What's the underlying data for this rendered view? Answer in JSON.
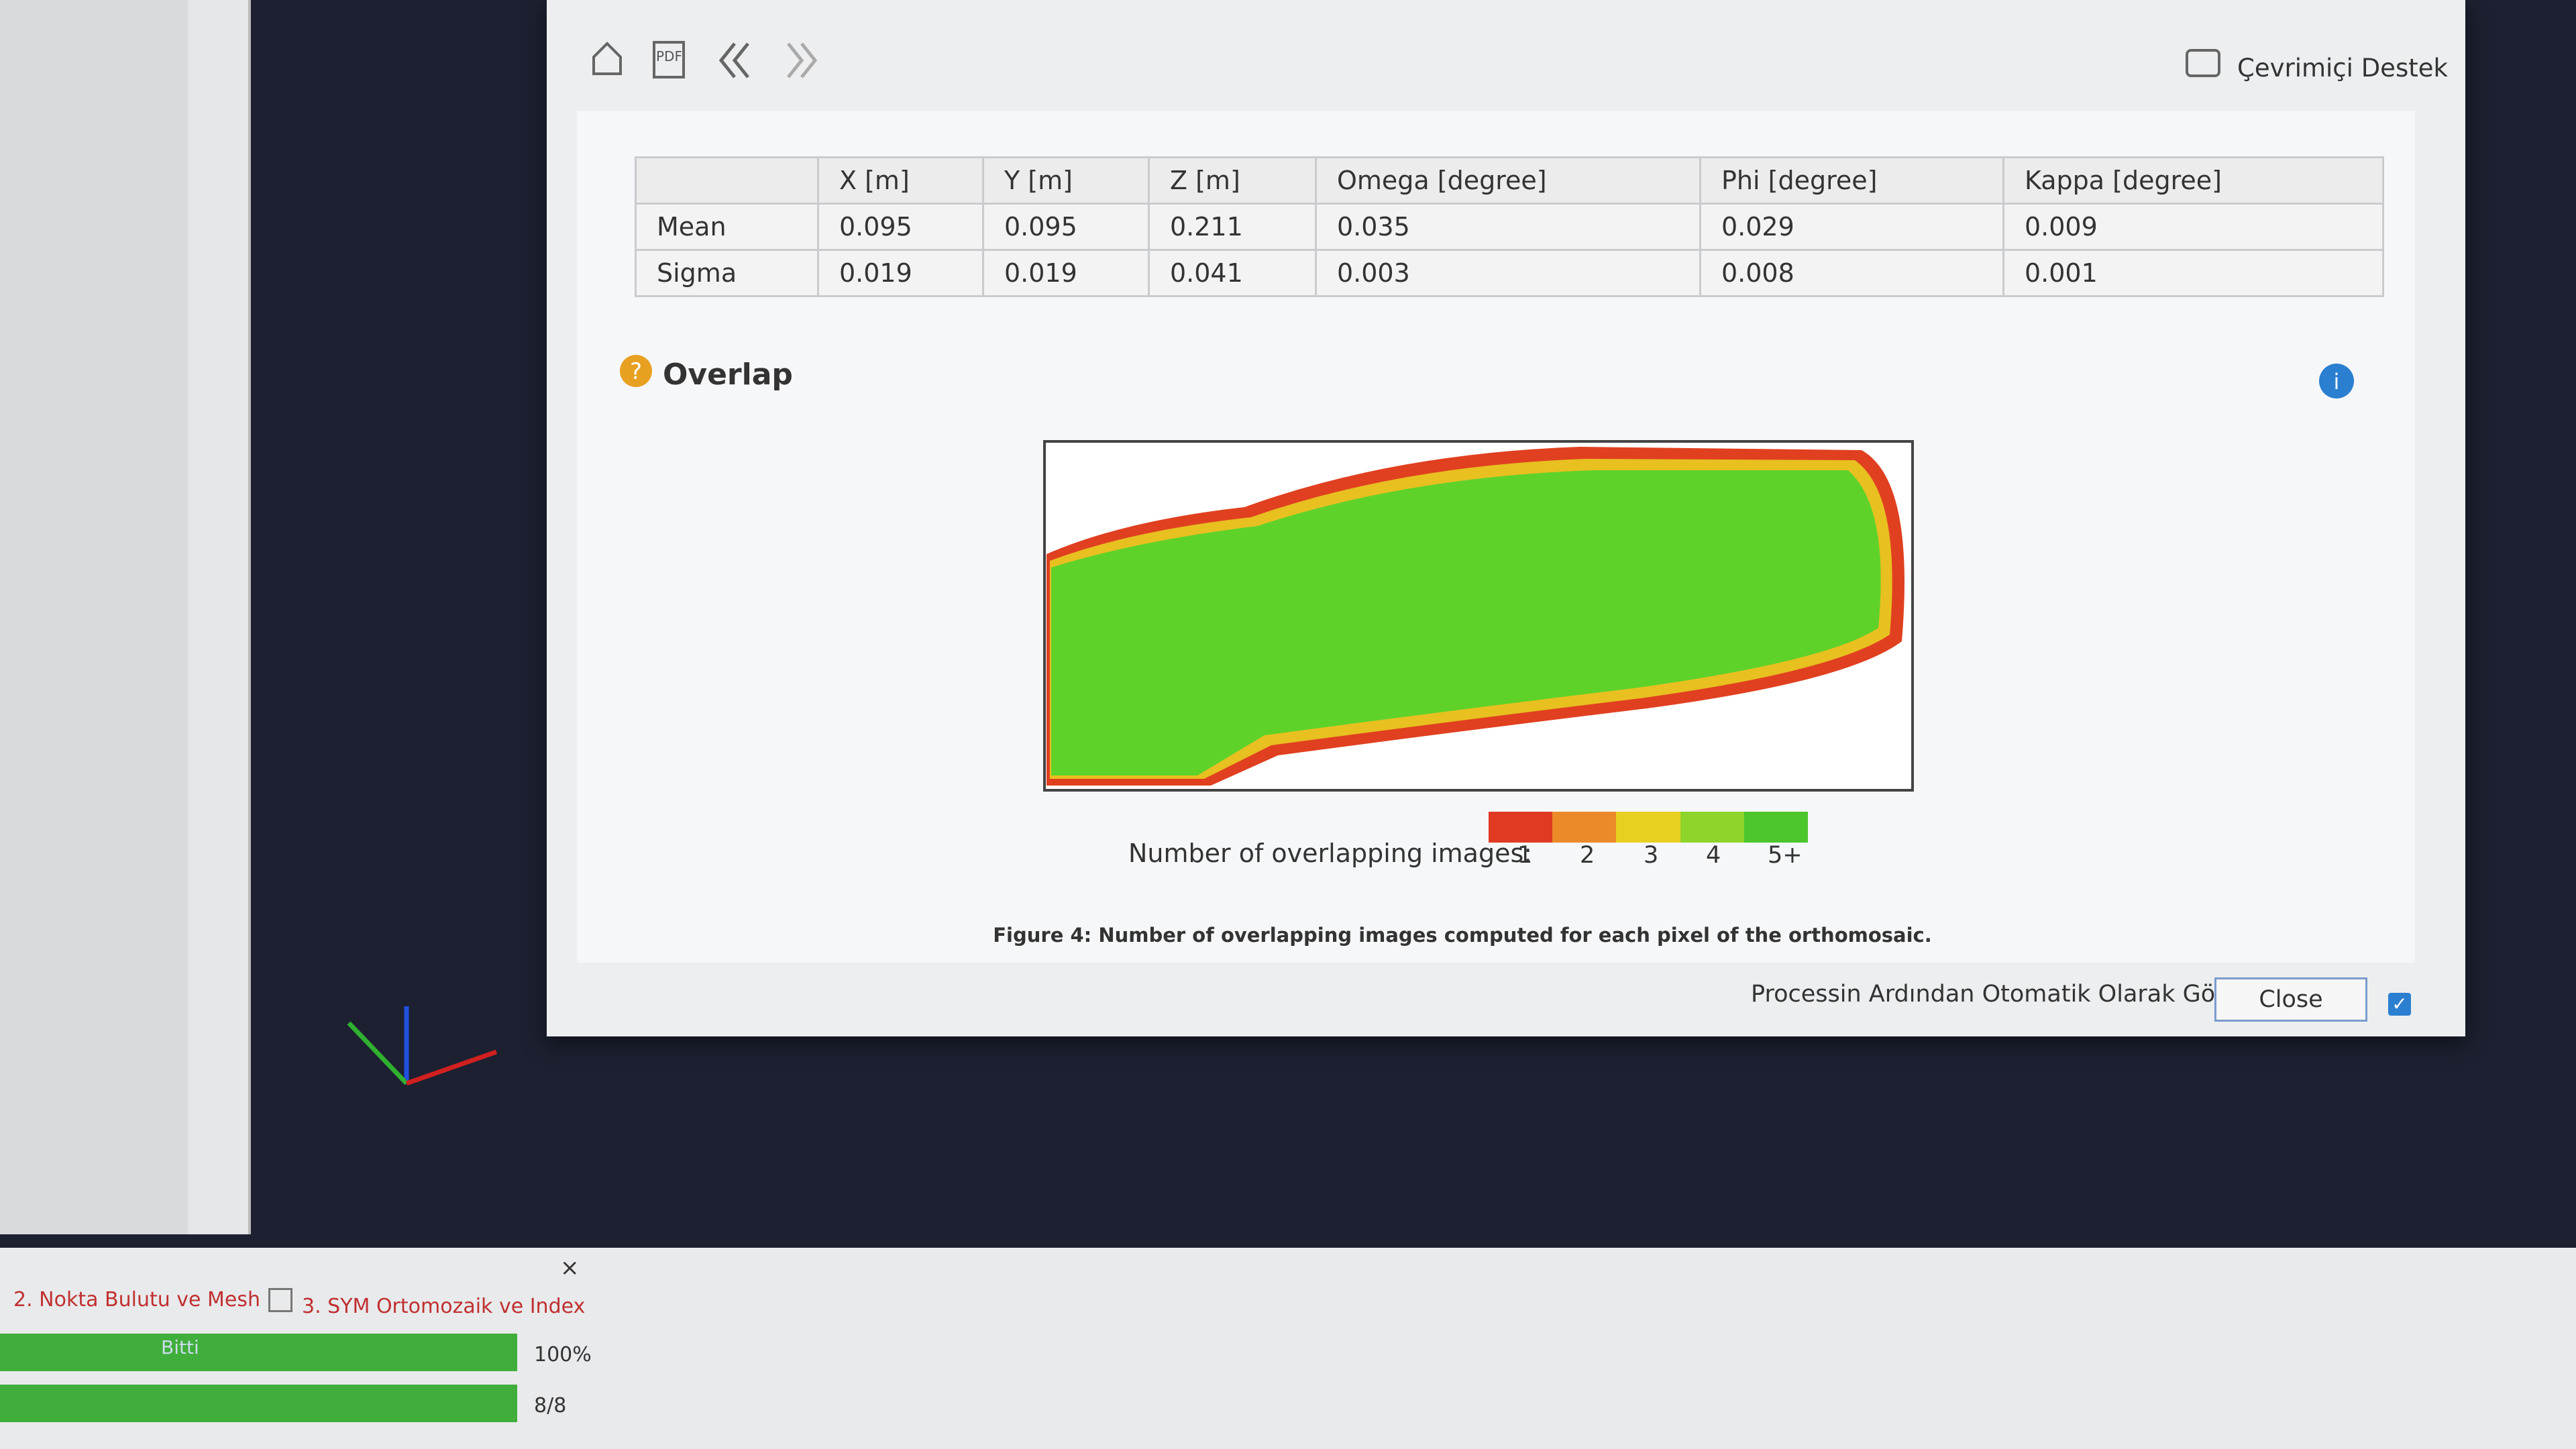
{
  "toolbar": {
    "pdf_icon": "PDF",
    "support": "Çevrimiçi Destek"
  },
  "table": {
    "header": [
      "X [m]",
      "Y [m]",
      "Z [m]",
      "Omega [degree]",
      "Phi [degree]",
      "Kappa [degree]"
    ],
    "rows": [
      [
        "Mean",
        "0.095",
        "0.095",
        "0.211",
        "0.035",
        "0.029",
        "0.009"
      ],
      [
        "Sigma",
        "0.019",
        "0.019",
        "0.041",
        "0.003",
        "0.008",
        "0.001"
      ]
    ]
  },
  "section": {
    "title": "Overlap"
  },
  "legend": {
    "label": "Number of overlapping images:",
    "items": [
      "1",
      "2",
      "3",
      "4",
      "5+"
    ]
  },
  "caption": "Figure 4: Number of overlapping images computed for each pixel of the orthomosaic.",
  "footer": {
    "checkbox_label": "Processin Ardından Otomatik Olarak Göster",
    "close": "Close"
  },
  "taskbar": {
    "close_icon": "×",
    "steps": [
      "2. Nokta Bulutu ve Mesh",
      "3. SYM Ortomozaik ve Index"
    ],
    "progress": [
      {
        "text": "Bitti",
        "status": "100%"
      },
      {
        "status": "8/8"
      }
    ]
  }
}
